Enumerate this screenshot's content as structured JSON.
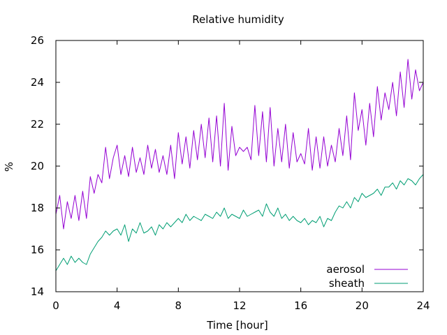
{
  "chart_data": {
    "type": "line",
    "title": "Relative humidity",
    "xlabel": "Time [hour]",
    "ylabel": "%",
    "xlim": [
      0,
      24
    ],
    "ylim": [
      14,
      26
    ],
    "xticks": [
      0,
      4,
      8,
      12,
      16,
      20,
      24
    ],
    "yticks": [
      14,
      16,
      18,
      20,
      22,
      24,
      26
    ],
    "grid": false,
    "legend_position": "bottom-right",
    "series": [
      {
        "name": "aerosol",
        "color": "#9400d3",
        "x": [
          0,
          0.25,
          0.5,
          0.75,
          1,
          1.25,
          1.5,
          1.75,
          2,
          2.25,
          2.5,
          2.75,
          3,
          3.25,
          3.5,
          3.75,
          4,
          4.25,
          4.5,
          4.75,
          5,
          5.25,
          5.5,
          5.75,
          6,
          6.25,
          6.5,
          6.75,
          7,
          7.25,
          7.5,
          7.75,
          8,
          8.25,
          8.5,
          8.75,
          9,
          9.25,
          9.5,
          9.75,
          10,
          10.25,
          10.5,
          10.75,
          11,
          11.25,
          11.5,
          11.75,
          12,
          12.25,
          12.5,
          12.75,
          13,
          13.25,
          13.5,
          13.75,
          14,
          14.25,
          14.5,
          14.75,
          15,
          15.25,
          15.5,
          15.75,
          16,
          16.25,
          16.5,
          16.75,
          17,
          17.25,
          17.5,
          17.75,
          18,
          18.25,
          18.5,
          18.75,
          19,
          19.25,
          19.5,
          19.75,
          20,
          20.25,
          20.5,
          20.75,
          21,
          21.25,
          21.5,
          21.75,
          22,
          22.25,
          22.5,
          22.75,
          23,
          23.25,
          23.5,
          23.75,
          24
        ],
        "y": [
          17.7,
          18.6,
          17.0,
          18.3,
          17.5,
          18.6,
          17.4,
          18.8,
          17.5,
          19.5,
          18.7,
          19.6,
          19.2,
          20.9,
          19.4,
          20.4,
          21.0,
          19.6,
          20.5,
          19.5,
          20.9,
          19.7,
          20.4,
          19.6,
          21.0,
          19.9,
          20.8,
          19.7,
          20.5,
          19.6,
          21.0,
          19.4,
          21.6,
          20.1,
          21.4,
          19.9,
          21.7,
          20.3,
          22.0,
          20.4,
          22.3,
          20.2,
          22.4,
          20.0,
          23.0,
          19.8,
          21.9,
          20.5,
          20.9,
          20.7,
          20.9,
          20.3,
          22.9,
          20.5,
          22.6,
          20.2,
          22.8,
          20.0,
          21.8,
          20.2,
          22.0,
          19.9,
          21.6,
          20.2,
          20.6,
          20.1,
          21.8,
          19.8,
          21.4,
          19.9,
          21.4,
          20.0,
          21.0,
          20.2,
          21.8,
          20.5,
          22.4,
          20.3,
          23.5,
          21.7,
          22.7,
          21.0,
          23.0,
          21.4,
          23.8,
          22.2,
          23.5,
          22.7,
          24.0,
          22.4,
          24.5,
          22.8,
          25.1,
          23.2,
          24.6,
          23.6,
          24.0
        ]
      },
      {
        "name": "sheath",
        "color": "#009e73",
        "x": [
          0,
          0.25,
          0.5,
          0.75,
          1,
          1.25,
          1.5,
          1.75,
          2,
          2.25,
          2.5,
          2.75,
          3,
          3.25,
          3.5,
          3.75,
          4,
          4.25,
          4.5,
          4.75,
          5,
          5.25,
          5.5,
          5.75,
          6,
          6.25,
          6.5,
          6.75,
          7,
          7.25,
          7.5,
          7.75,
          8,
          8.25,
          8.5,
          8.75,
          9,
          9.25,
          9.5,
          9.75,
          10,
          10.25,
          10.5,
          10.75,
          11,
          11.25,
          11.5,
          11.75,
          12,
          12.25,
          12.5,
          12.75,
          13,
          13.25,
          13.5,
          13.75,
          14,
          14.25,
          14.5,
          14.75,
          15,
          15.25,
          15.5,
          15.75,
          16,
          16.25,
          16.5,
          16.75,
          17,
          17.25,
          17.5,
          17.75,
          18,
          18.25,
          18.5,
          18.75,
          19,
          19.25,
          19.5,
          19.75,
          20,
          20.25,
          20.5,
          20.75,
          21,
          21.25,
          21.5,
          21.75,
          22,
          22.25,
          22.5,
          22.75,
          23,
          23.25,
          23.5,
          23.75,
          24
        ],
        "y": [
          15.0,
          15.3,
          15.6,
          15.3,
          15.7,
          15.4,
          15.6,
          15.4,
          15.3,
          15.8,
          16.1,
          16.4,
          16.6,
          16.9,
          16.7,
          16.9,
          17.0,
          16.7,
          17.2,
          16.4,
          17.0,
          16.8,
          17.3,
          16.8,
          16.9,
          17.1,
          16.7,
          17.2,
          17.0,
          17.3,
          17.1,
          17.3,
          17.5,
          17.3,
          17.7,
          17.4,
          17.6,
          17.5,
          17.4,
          17.7,
          17.6,
          17.5,
          17.8,
          17.6,
          18.0,
          17.5,
          17.7,
          17.6,
          17.5,
          17.9,
          17.6,
          17.7,
          17.8,
          17.9,
          17.6,
          18.2,
          17.8,
          17.6,
          18.0,
          17.5,
          17.7,
          17.4,
          17.6,
          17.4,
          17.3,
          17.5,
          17.2,
          17.4,
          17.3,
          17.6,
          17.1,
          17.5,
          17.4,
          17.8,
          18.1,
          18.0,
          18.3,
          18.0,
          18.5,
          18.3,
          18.7,
          18.5,
          18.6,
          18.7,
          18.9,
          18.6,
          19.0,
          19.0,
          19.2,
          18.9,
          19.3,
          19.1,
          19.4,
          19.3,
          19.1,
          19.4,
          19.6
        ]
      }
    ]
  }
}
